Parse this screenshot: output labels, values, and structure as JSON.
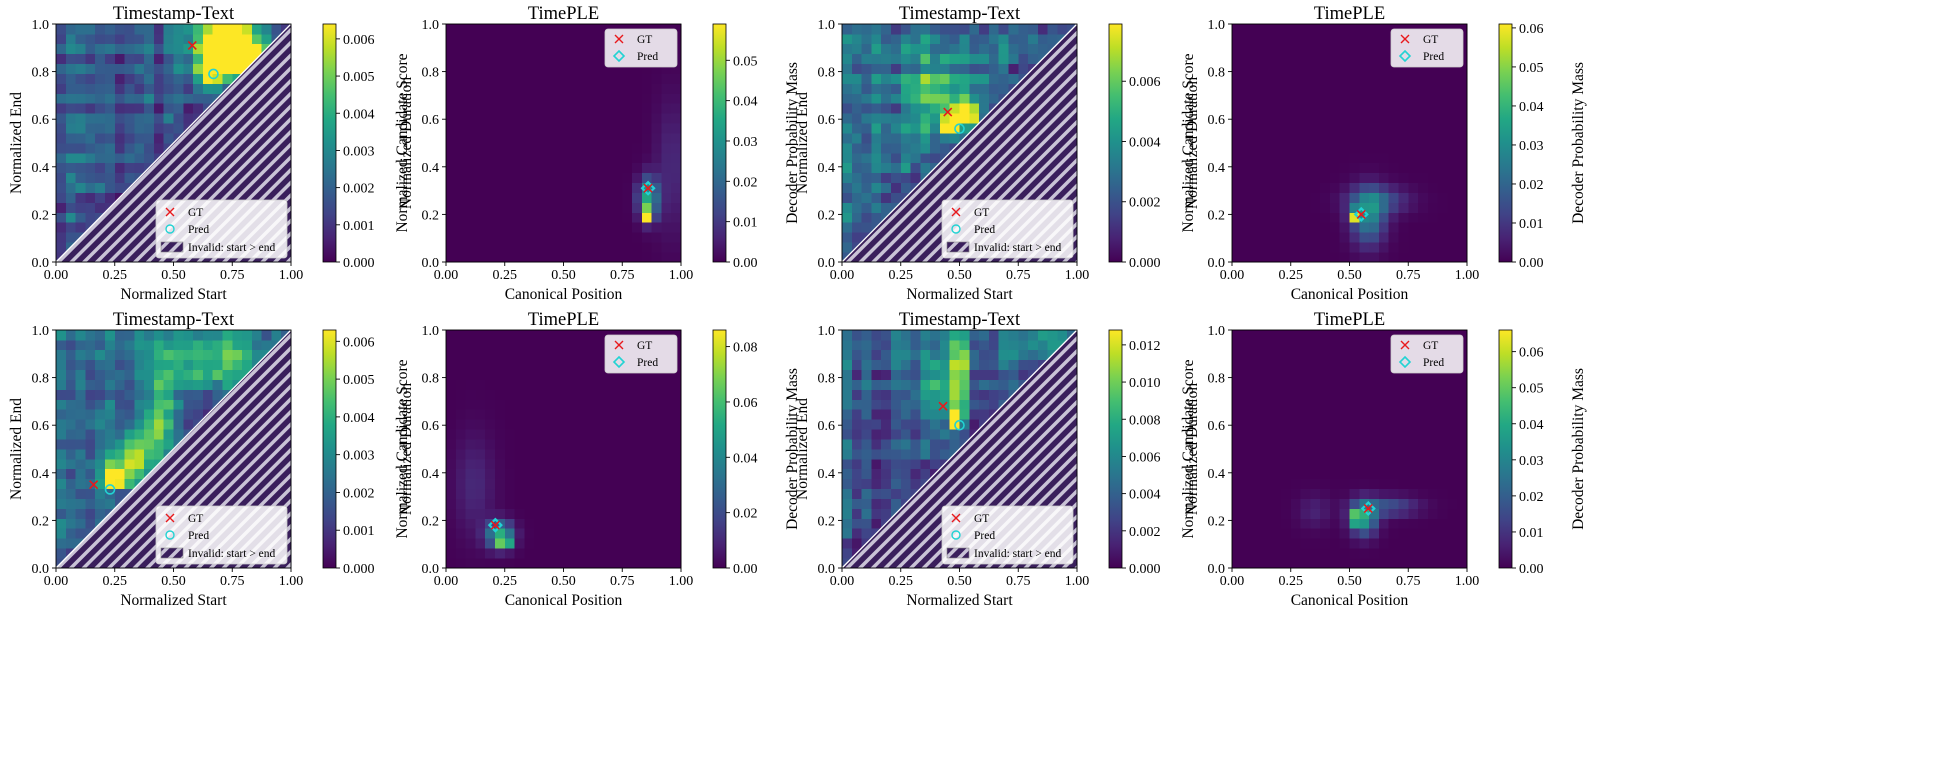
{
  "colormap": "viridis",
  "colors": {
    "gt": "#e8191c",
    "pred": "#22d3d3",
    "diag": "#ffffff",
    "hatch_bg": "#3a1f5c",
    "hatch_line": "#c9c3d6"
  },
  "legend_ts": {
    "gt": "GT",
    "pred": "Pred",
    "invalid": "Invalid: start > end"
  },
  "legend_ple": {
    "gt": "GT",
    "pred": "Pred"
  },
  "chart_data": [
    {
      "type": "heatmap",
      "kind": "ts",
      "title": "Timestamp-Text",
      "xlabel": "Normalized Start",
      "ylabel": "Normalized End",
      "cbar_label": "Normalized Candidate Score",
      "xlim": [
        0,
        1
      ],
      "ylim": [
        0,
        1
      ],
      "xticks": [
        "0.00",
        "0.25",
        "0.50",
        "0.75",
        "1.00"
      ],
      "yticks": [
        "0.0",
        "0.2",
        "0.4",
        "0.6",
        "0.8",
        "1.0"
      ],
      "cbar_range": [
        0,
        0.0064
      ],
      "cbar_ticks": [
        "0.000",
        "0.001",
        "0.002",
        "0.003",
        "0.004",
        "0.005",
        "0.006"
      ],
      "gt": [
        0.58,
        0.91
      ],
      "pred": [
        0.67,
        0.79
      ],
      "hot": [
        [
          0.72,
          0.93,
          0.1,
          0.07,
          1.0
        ],
        [
          0.8,
          0.84,
          0.08,
          0.06,
          0.8
        ],
        [
          0.66,
          0.8,
          0.05,
          0.05,
          0.7
        ]
      ],
      "base": 0.22,
      "stripes": true,
      "legend_loc": "lower-right"
    },
    {
      "type": "heatmap",
      "kind": "ple",
      "title": "TimePLE",
      "xlabel": "Canonical Position",
      "ylabel": "Normalized Duration",
      "cbar_label": "Decoder Probability Mass",
      "xlim": [
        0,
        1
      ],
      "ylim": [
        0,
        1
      ],
      "xticks": [
        "0.00",
        "0.25",
        "0.50",
        "0.75",
        "1.00"
      ],
      "yticks": [
        "0.0",
        "0.2",
        "0.4",
        "0.6",
        "0.8",
        "1.0"
      ],
      "cbar_range": [
        0,
        0.059
      ],
      "cbar_ticks": [
        "0.00",
        "0.01",
        "0.02",
        "0.03",
        "0.04",
        "0.05"
      ],
      "gt": [
        0.86,
        0.31
      ],
      "pred": [
        0.86,
        0.31
      ],
      "hot": [
        [
          0.86,
          0.2,
          0.015,
          0.02,
          1.0
        ],
        [
          0.86,
          0.27,
          0.03,
          0.06,
          0.6
        ],
        [
          0.96,
          0.4,
          0.05,
          0.2,
          0.12
        ]
      ],
      "base": 0.0,
      "stripes": false,
      "legend_loc": "upper-right"
    },
    {
      "type": "heatmap",
      "kind": "ts",
      "title": "Timestamp-Text",
      "xlabel": "Normalized Start",
      "ylabel": "Normalized End",
      "cbar_label": "Normalized Candidate Score",
      "xlim": [
        0,
        1
      ],
      "ylim": [
        0,
        1
      ],
      "xticks": [
        "0.00",
        "0.25",
        "0.50",
        "0.75",
        "1.00"
      ],
      "yticks": [
        "0.0",
        "0.2",
        "0.4",
        "0.6",
        "0.8",
        "1.0"
      ],
      "cbar_range": [
        0,
        0.0079
      ],
      "cbar_ticks": [
        "0.000",
        "0.002",
        "0.004",
        "0.006"
      ],
      "gt": [
        0.45,
        0.63
      ],
      "pred": [
        0.5,
        0.56
      ],
      "hot": [
        [
          0.46,
          0.55,
          0.02,
          0.02,
          1.0
        ],
        [
          0.48,
          0.62,
          0.04,
          0.03,
          0.8
        ],
        [
          0.55,
          0.62,
          0.03,
          0.04,
          0.7
        ],
        [
          0.4,
          0.72,
          0.1,
          0.1,
          0.4
        ]
      ],
      "base": 0.3,
      "stripes": true,
      "legend_loc": "lower-right"
    },
    {
      "type": "heatmap",
      "kind": "ple",
      "title": "TimePLE",
      "xlabel": "Canonical Position",
      "ylabel": "Normalized Duration",
      "cbar_label": "Decoder Probability Mass",
      "xlim": [
        0,
        1
      ],
      "ylim": [
        0,
        1
      ],
      "xticks": [
        "0.00",
        "0.25",
        "0.50",
        "0.75",
        "1.00"
      ],
      "yticks": [
        "0.0",
        "0.2",
        "0.4",
        "0.6",
        "0.8",
        "1.0"
      ],
      "cbar_range": [
        0,
        0.061
      ],
      "cbar_ticks": [
        "0.00",
        "0.01",
        "0.02",
        "0.03",
        "0.04",
        "0.05",
        "0.06"
      ],
      "gt": [
        0.55,
        0.2
      ],
      "pred": [
        0.55,
        0.2
      ],
      "hot": [
        [
          0.52,
          0.2,
          0.015,
          0.015,
          1.0
        ],
        [
          0.58,
          0.19,
          0.05,
          0.08,
          0.45
        ],
        [
          0.62,
          0.26,
          0.09,
          0.04,
          0.25
        ]
      ],
      "base": 0.0,
      "stripes": false,
      "legend_loc": "upper-right"
    },
    {
      "type": "heatmap",
      "kind": "ts",
      "title": "Timestamp-Text",
      "xlabel": "Normalized Start",
      "ylabel": "Normalized End",
      "cbar_label": "Normalized Candidate Score",
      "xlim": [
        0,
        1
      ],
      "ylim": [
        0,
        1
      ],
      "xticks": [
        "0.00",
        "0.25",
        "0.50",
        "0.75",
        "1.00"
      ],
      "yticks": [
        "0.0",
        "0.2",
        "0.4",
        "0.6",
        "0.8",
        "1.0"
      ],
      "cbar_range": [
        0,
        0.0063
      ],
      "cbar_ticks": [
        "0.000",
        "0.001",
        "0.002",
        "0.003",
        "0.004",
        "0.005",
        "0.006"
      ],
      "gt": [
        0.16,
        0.35
      ],
      "pred": [
        0.23,
        0.33
      ],
      "hot": [
        [
          0.25,
          0.38,
          0.04,
          0.03,
          1.0
        ],
        [
          0.32,
          0.46,
          0.06,
          0.08,
          0.6
        ],
        [
          0.45,
          0.62,
          0.05,
          0.18,
          0.45
        ],
        [
          0.7,
          0.86,
          0.2,
          0.08,
          0.45
        ]
      ],
      "base": 0.25,
      "stripes": true,
      "legend_loc": "lower-right"
    },
    {
      "type": "heatmap",
      "kind": "ple",
      "title": "TimePLE",
      "xlabel": "Canonical Position",
      "ylabel": "Normalized Duration",
      "cbar_label": "Decoder Probability Mass",
      "xlim": [
        0,
        1
      ],
      "ylim": [
        0,
        1
      ],
      "xticks": [
        "0.00",
        "0.25",
        "0.50",
        "0.75",
        "1.00"
      ],
      "yticks": [
        "0.0",
        "0.2",
        "0.4",
        "0.6",
        "0.8",
        "1.0"
      ],
      "cbar_range": [
        0,
        0.086
      ],
      "cbar_ticks": [
        "0.00",
        "0.02",
        "0.04",
        "0.06",
        "0.08"
      ],
      "gt": [
        0.21,
        0.18
      ],
      "pred": [
        0.21,
        0.18
      ],
      "hot": [
        [
          0.25,
          0.11,
          0.015,
          0.015,
          1.0
        ],
        [
          0.23,
          0.14,
          0.04,
          0.04,
          0.6
        ],
        [
          0.12,
          0.35,
          0.06,
          0.15,
          0.12
        ]
      ],
      "base": 0.0,
      "stripes": false,
      "legend_loc": "upper-right"
    },
    {
      "type": "heatmap",
      "kind": "ts",
      "title": "Timestamp-Text",
      "xlabel": "Normalized Start",
      "ylabel": "Normalized End",
      "cbar_label": "Normalized Candidate Score",
      "xlim": [
        0,
        1
      ],
      "ylim": [
        0,
        1
      ],
      "xticks": [
        "0.00",
        "0.25",
        "0.50",
        "0.75",
        "1.00"
      ],
      "yticks": [
        "0.0",
        "0.2",
        "0.4",
        "0.6",
        "0.8",
        "1.0"
      ],
      "cbar_range": [
        0,
        0.0128
      ],
      "cbar_ticks": [
        "0.000",
        "0.002",
        "0.004",
        "0.006",
        "0.008",
        "0.010",
        "0.012"
      ],
      "gt": [
        0.43,
        0.68
      ],
      "pred": [
        0.5,
        0.6
      ],
      "hot": [
        [
          0.49,
          0.63,
          0.015,
          0.03,
          1.0
        ],
        [
          0.5,
          0.82,
          0.02,
          0.15,
          0.75
        ],
        [
          0.4,
          0.75,
          0.05,
          0.1,
          0.35
        ],
        [
          0.9,
          0.95,
          0.08,
          0.05,
          0.35
        ]
      ],
      "base": 0.22,
      "stripes": true,
      "legend_loc": "lower-right"
    },
    {
      "type": "heatmap",
      "kind": "ple",
      "title": "TimePLE",
      "xlabel": "Canonical Position",
      "ylabel": "Normalized Duration",
      "cbar_label": "Decoder Probability Mass",
      "xlim": [
        0,
        1
      ],
      "ylim": [
        0,
        1
      ],
      "xticks": [
        "0.00",
        "0.25",
        "0.50",
        "0.75",
        "1.00"
      ],
      "yticks": [
        "0.0",
        "0.2",
        "0.4",
        "0.6",
        "0.8",
        "1.0"
      ],
      "cbar_range": [
        0,
        0.066
      ],
      "cbar_ticks": [
        "0.00",
        "0.01",
        "0.02",
        "0.03",
        "0.04",
        "0.05",
        "0.06"
      ],
      "gt": [
        0.58,
        0.25
      ],
      "pred": [
        0.58,
        0.25
      ],
      "hot": [
        [
          0.53,
          0.21,
          0.015,
          0.015,
          1.0
        ],
        [
          0.56,
          0.21,
          0.04,
          0.05,
          0.55
        ],
        [
          0.66,
          0.26,
          0.09,
          0.03,
          0.25
        ],
        [
          0.35,
          0.24,
          0.05,
          0.05,
          0.1
        ]
      ],
      "base": 0.0,
      "stripes": false,
      "legend_loc": "upper-right"
    }
  ]
}
